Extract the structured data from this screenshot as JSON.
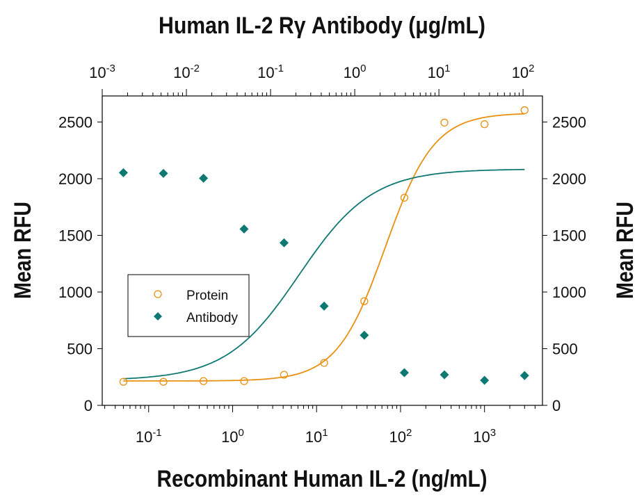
{
  "chart_data": {
    "type": "scatter",
    "top_xlabel": "Human IL-2 Rγ Antibody (μg/mL)",
    "xlabel": "Recombinant Human IL-2 (ng/mL)",
    "ylabel": "Mean RFU",
    "ylabel_right": "Mean RFU",
    "x_scale": "log",
    "xlim": [
      0.028,
      4900
    ],
    "top_x_scale": "log",
    "top_xlim": [
      0.001,
      170
    ],
    "ylim": [
      0,
      2730
    ],
    "x_ticks": [
      "10^-1",
      "10^0",
      "10^1",
      "10^2",
      "10^3"
    ],
    "x_tick_values": [
      0.1,
      1,
      10,
      100,
      1000
    ],
    "top_x_ticks": [
      "10^-3",
      "10^-2",
      "10^-1",
      "10^0",
      "10^1",
      "10^2"
    ],
    "top_x_tick_values": [
      0.001,
      0.01,
      0.1,
      1,
      10,
      100
    ],
    "y_ticks": [
      0,
      500,
      1000,
      1500,
      2000,
      2500
    ],
    "grid": false,
    "legend_placement": "center-left",
    "series": [
      {
        "name": "Protein",
        "marker": "open-circle",
        "color": "#E8900F",
        "axis": "bottom",
        "x": [
          0.05,
          0.15,
          0.45,
          1.37,
          4.1,
          12.3,
          37,
          111,
          333,
          1000,
          3000
        ],
        "y": [
          208,
          208,
          214,
          214,
          270,
          375,
          919,
          1832,
          2495,
          2481,
          2604
        ],
        "fit": {
          "bottom": 215,
          "top": 2580,
          "ec50": 66,
          "hill": 1.5
        }
      },
      {
        "name": "Antibody",
        "marker": "filled-diamond",
        "color": "#0E7872",
        "axis": "bottom",
        "x": [
          0.05,
          0.15,
          0.45,
          1.37,
          4.1,
          12.3,
          37,
          111,
          333,
          1000,
          3000
        ],
        "y": [
          2053,
          2047,
          2004,
          1556,
          1434,
          876,
          619,
          288,
          270,
          221,
          263
        ],
        "fit": {
          "bottom": 220,
          "top": 2085,
          "ec50": 6.2,
          "hill": 1.0
        }
      }
    ]
  }
}
